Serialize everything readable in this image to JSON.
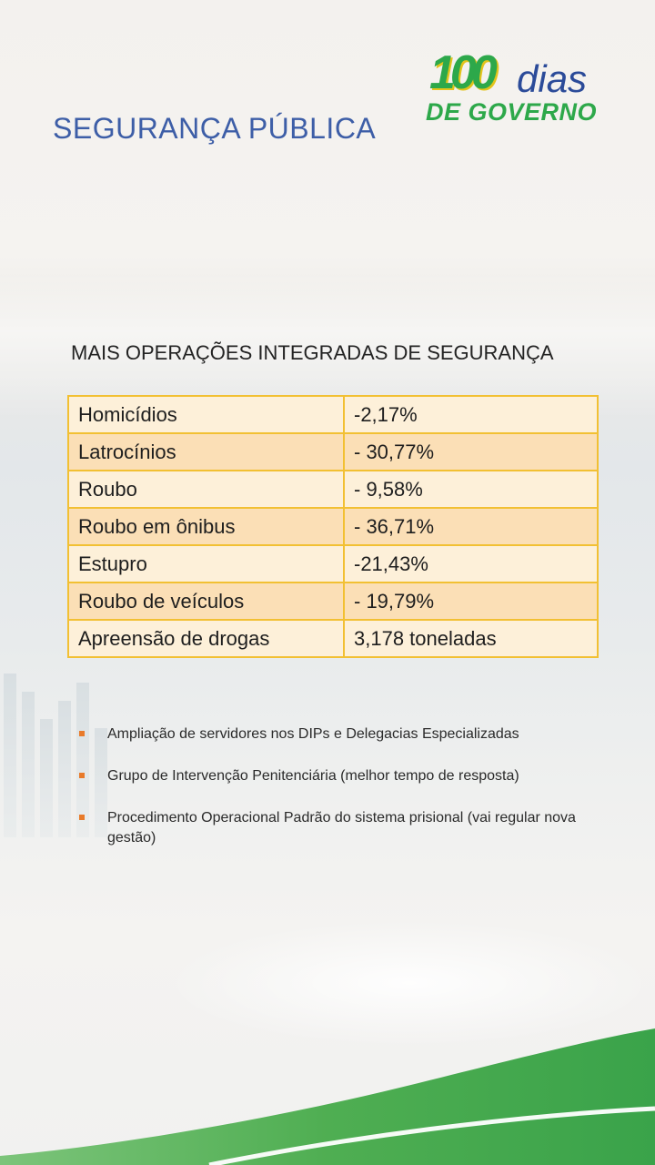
{
  "header": {
    "title": "SEGURANÇA PÚBLICA",
    "logo": {
      "number": "100",
      "word": "dias",
      "subtitle": "DE GOVERNO"
    }
  },
  "section": {
    "title": "MAIS OPERAÇÕES INTEGRADAS DE SEGURANÇA"
  },
  "table": {
    "rows": [
      {
        "label": "Homicídios",
        "value": "-2,17%"
      },
      {
        "label": "Latrocínios",
        "value": "- 30,77%"
      },
      {
        "label": "Roubo",
        "value": "- 9,58%"
      },
      {
        "label": "Roubo em ônibus",
        "value": "- 36,71%"
      },
      {
        "label": "Estupro",
        "value": "-21,43%"
      },
      {
        "label": "Roubo de veículos",
        "value": "- 19,79%"
      },
      {
        "label": "Apreensão de drogas",
        "value": "3,178 toneladas"
      }
    ]
  },
  "bullets": [
    "Ampliação  de servidores nos   DIPs  e Delegacias Especializadas",
    "Grupo de Intervenção Penitenciária (melhor tempo de resposta)",
    "Procedimento  Operacional Padrão do sistema prisional (vai regular nova gestão)"
  ],
  "colors": {
    "title_blue": "#3d5ea7",
    "logo_green": "#2da84a",
    "logo_yellow": "#e3c41a",
    "table_border": "#f2c033",
    "row_light": "#fdf0d9",
    "row_dark": "#fbdfb6",
    "bullet_orange": "#e87a2a",
    "wave_green": "#3aa34a"
  }
}
